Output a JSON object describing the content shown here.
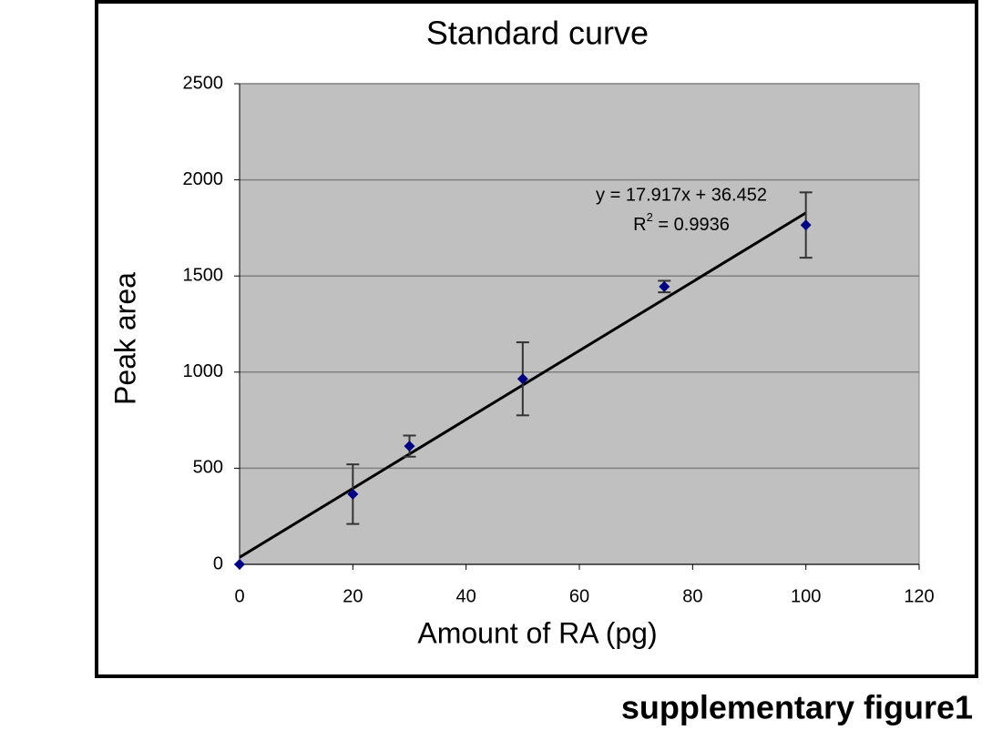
{
  "chart_data": {
    "type": "scatter",
    "title": "Standard curve",
    "x_label": "Amount of RA (pg)",
    "y_label": "Peak area",
    "x": [
      0,
      20,
      30,
      50,
      75,
      100
    ],
    "values": [
      0,
      365,
      615,
      965,
      1445,
      1765
    ],
    "errors": [
      null,
      155,
      55,
      190,
      30,
      170
    ],
    "color": "#000080",
    "xlim": [
      0,
      120
    ],
    "xticks": [
      0,
      20,
      40,
      60,
      80,
      100,
      120
    ],
    "ylim": [
      0,
      2500
    ],
    "yticks": [
      0,
      500,
      1000,
      1500,
      2000,
      2500
    ],
    "grid": true,
    "trendline": {
      "slope": 17.917,
      "intercept": 36.452,
      "equation": "y = 17.917x + 36.452",
      "r2_label": {
        "base": "R",
        "sup": "2",
        "rest": " = 0.9936"
      }
    },
    "caption": "supplementary figure1"
  }
}
